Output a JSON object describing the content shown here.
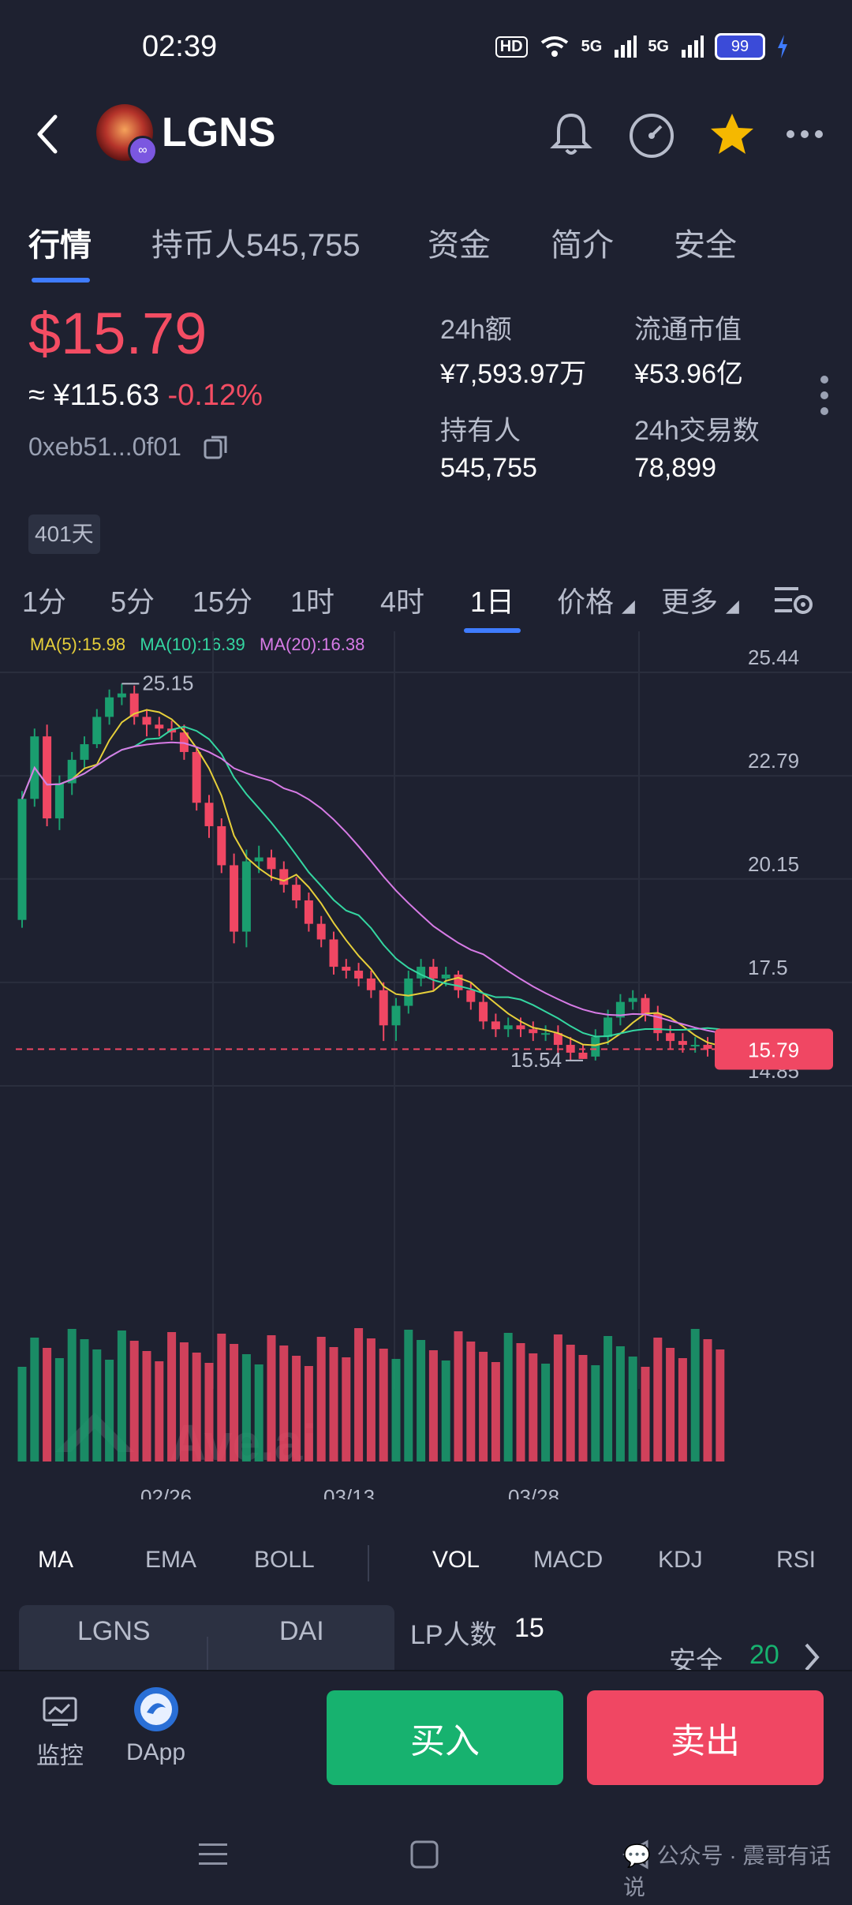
{
  "status_bar": {
    "time": "02:39",
    "hd": "HD",
    "net1": "5G",
    "net2": "5G",
    "battery": "99"
  },
  "header": {
    "title": "LGNS"
  },
  "tabs": [
    "行情",
    "持币人545,755",
    "资金",
    "简介",
    "安全"
  ],
  "price": {
    "usd": "$15.79",
    "cny": "≈ ¥115.63",
    "change": "-0.12%",
    "address": "0xeb51...0f01"
  },
  "stats": {
    "vol24h_label": "24h额",
    "vol24h": "¥7,593.97万",
    "mcap_label": "流通市值",
    "mcap": "¥53.96亿",
    "holders_label": "持有人",
    "holders": "545,755",
    "tx24h_label": "24h交易数",
    "tx24h": "78,899"
  },
  "days_badge": "401天",
  "intervals": [
    "1分",
    "5分",
    "15分",
    "1时",
    "4时",
    "1日",
    "价格",
    "更多"
  ],
  "ma_legend": {
    "ma5": "MA(5):15.98",
    "ma10": "MA(10):16.39",
    "ma20": "MA(20):16.38"
  },
  "chart_data": {
    "type": "candlestick",
    "y_ticks": [
      "25.44",
      "22.79",
      "20.15",
      "17.5",
      "14.85"
    ],
    "x_ticks": [
      "02/26",
      "03/13",
      "03/28"
    ],
    "annotations": {
      "high": "25.15",
      "low": "15.54",
      "last": "15.79"
    },
    "watermark": "Ave.ai",
    "colors": {
      "up": "#1a9e6f",
      "down": "#f04763",
      "ma5": "#e6cf3a",
      "ma10": "#34d6a1",
      "ma20": "#d77be6"
    },
    "candles": [
      [
        19.1,
        22.2,
        18.9,
        22.4
      ],
      [
        22.2,
        23.8,
        22.0,
        24.0
      ],
      [
        23.8,
        21.7,
        21.5,
        24.1
      ],
      [
        21.7,
        22.6,
        21.4,
        22.8
      ],
      [
        22.6,
        23.2,
        22.3,
        23.4
      ],
      [
        23.2,
        23.6,
        23.0,
        23.8
      ],
      [
        23.6,
        24.3,
        23.5,
        24.5
      ],
      [
        24.3,
        24.8,
        24.1,
        25.0
      ],
      [
        24.8,
        24.9,
        24.6,
        25.15
      ],
      [
        24.9,
        24.3,
        24.1,
        25.1
      ],
      [
        24.3,
        24.1,
        23.8,
        24.5
      ],
      [
        24.1,
        24.0,
        23.8,
        24.3
      ],
      [
        24.0,
        23.9,
        23.7,
        24.2
      ],
      [
        23.9,
        23.4,
        23.2,
        24.1
      ],
      [
        23.4,
        22.1,
        21.9,
        23.5
      ],
      [
        22.1,
        21.5,
        21.2,
        22.3
      ],
      [
        21.5,
        20.5,
        20.3,
        21.7
      ],
      [
        20.5,
        18.8,
        18.5,
        20.8
      ],
      [
        18.8,
        20.6,
        18.4,
        20.9
      ],
      [
        20.6,
        20.7,
        20.3,
        21.0
      ],
      [
        20.7,
        20.4,
        20.1,
        20.9
      ],
      [
        20.4,
        20.0,
        19.8,
        20.6
      ],
      [
        20.0,
        19.6,
        19.4,
        20.2
      ],
      [
        19.6,
        19.0,
        18.8,
        19.8
      ],
      [
        19.0,
        18.6,
        18.4,
        19.2
      ],
      [
        18.6,
        17.9,
        17.7,
        18.8
      ],
      [
        17.9,
        17.8,
        17.6,
        18.1
      ],
      [
        17.8,
        17.6,
        17.4,
        18.0
      ],
      [
        17.6,
        17.3,
        17.1,
        17.8
      ],
      [
        17.3,
        16.4,
        16.0,
        17.5
      ],
      [
        16.4,
        16.9,
        16.0,
        17.1
      ],
      [
        16.9,
        17.6,
        16.7,
        17.8
      ],
      [
        17.6,
        17.9,
        17.4,
        18.1
      ],
      [
        17.9,
        17.6,
        17.3,
        18.1
      ],
      [
        17.6,
        17.7,
        17.4,
        17.9
      ],
      [
        17.7,
        17.3,
        17.1,
        17.8
      ],
      [
        17.3,
        17.0,
        16.8,
        17.5
      ],
      [
        17.0,
        16.5,
        16.3,
        17.2
      ],
      [
        16.5,
        16.3,
        16.1,
        16.7
      ],
      [
        16.3,
        16.4,
        16.1,
        16.6
      ],
      [
        16.4,
        16.3,
        16.1,
        16.6
      ],
      [
        16.3,
        16.2,
        16.0,
        16.5
      ],
      [
        16.2,
        16.2,
        16.0,
        16.4
      ],
      [
        16.2,
        15.9,
        15.7,
        16.4
      ],
      [
        15.9,
        15.7,
        15.5,
        16.1
      ],
      [
        15.7,
        15.54,
        15.54,
        15.9
      ],
      [
        15.6,
        16.1,
        15.5,
        16.3
      ],
      [
        16.1,
        16.6,
        15.9,
        16.8
      ],
      [
        16.6,
        17.0,
        16.4,
        17.2
      ],
      [
        17.0,
        17.1,
        16.8,
        17.3
      ],
      [
        17.1,
        16.7,
        16.5,
        17.2
      ],
      [
        16.7,
        16.2,
        16.0,
        16.9
      ],
      [
        16.2,
        16.0,
        15.8,
        16.4
      ],
      [
        16.0,
        15.9,
        15.7,
        16.2
      ],
      [
        15.9,
        15.9,
        15.7,
        16.1
      ],
      [
        15.9,
        15.8,
        15.6,
        16.1
      ],
      [
        15.8,
        15.79,
        15.6,
        16.0
      ]
    ]
  },
  "indicators": [
    "MA",
    "EMA",
    "BOLL",
    "VOL",
    "MACD",
    "KDJ",
    "RSI"
  ],
  "pool": {
    "token_a": "LGNS",
    "token_b": "DAI"
  },
  "lp": {
    "label": "LP人数",
    "count": "15",
    "safety_label": "安全",
    "safety_score": "20"
  },
  "bottom_bar": {
    "monitor": "监控",
    "dapp": "DApp",
    "buy": "买入",
    "sell": "卖出"
  },
  "watermark_text": "公众号 · 震哥有话说"
}
